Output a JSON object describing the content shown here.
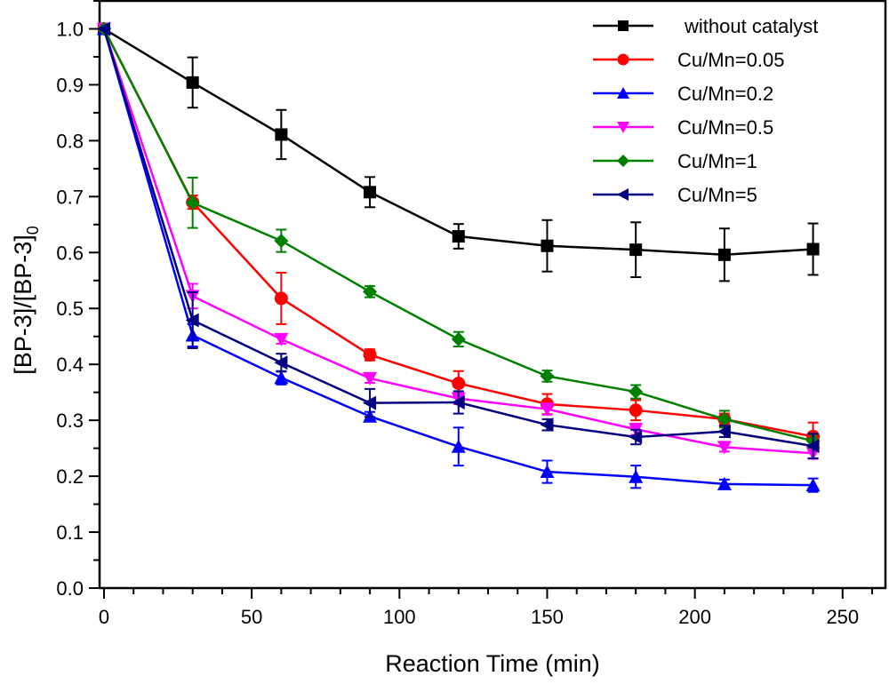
{
  "chart_data": {
    "type": "line",
    "title": "",
    "xlabel": "Reaction Time (min)",
    "ylabel_main": "[BP-3]/[BP-3]",
    "ylabel_subscript": "0",
    "xlim": [
      -1.5,
      264.5
    ],
    "ylim": [
      0,
      1.05
    ],
    "xticks": [
      0,
      50,
      100,
      150,
      200,
      250
    ],
    "xtick_labels": [
      "0",
      "50",
      "100",
      "150",
      "200",
      "250"
    ],
    "xminor_step": 10,
    "yticks": [
      0.0,
      0.1,
      0.2,
      0.3,
      0.4,
      0.5,
      0.6,
      0.7,
      0.8,
      0.9,
      1.0
    ],
    "ytick_labels": [
      "0.0",
      "0.1",
      "0.2",
      "0.3",
      "0.4",
      "0.5",
      "0.6",
      "0.7",
      "0.8",
      "0.9",
      "1.0"
    ],
    "yminor_step": 0.05,
    "grid": false,
    "legend_position": "top-right",
    "x": [
      0,
      30,
      60,
      90,
      120,
      150,
      180,
      210,
      240
    ],
    "series": [
      {
        "name": "without catalyst",
        "color": "#000000",
        "marker": "square",
        "values": [
          1.0,
          0.904,
          0.811,
          0.708,
          0.629,
          0.612,
          0.605,
          0.596,
          0.606
        ],
        "errors": [
          0,
          0.045,
          0.044,
          0.027,
          0.022,
          0.046,
          0.049,
          0.047,
          0.046
        ]
      },
      {
        "name": "Cu/Mn=0.05",
        "color": "#ff0000",
        "marker": "circle",
        "values": [
          1.0,
          0.69,
          0.518,
          0.417,
          0.366,
          0.329,
          0.318,
          0.302,
          0.271
        ],
        "errors": [
          0,
          0.012,
          0.046,
          0.01,
          0.022,
          0.018,
          0.018,
          0.01,
          0.025
        ]
      },
      {
        "name": "Cu/Mn=0.2",
        "color": "#0000ff",
        "marker": "triangle-up",
        "values": [
          1.0,
          0.452,
          0.376,
          0.307,
          0.253,
          0.208,
          0.199,
          0.186,
          0.184
        ],
        "errors": [
          0,
          0.02,
          0.012,
          0.008,
          0.034,
          0.02,
          0.02,
          0.008,
          0.012
        ]
      },
      {
        "name": "Cu/Mn=0.5",
        "color": "#ff00ff",
        "marker": "triangle-down",
        "values": [
          1.0,
          0.522,
          0.445,
          0.375,
          0.339,
          0.32,
          0.284,
          0.252,
          0.241
        ],
        "errors": [
          0,
          0.022,
          0.008,
          0.008,
          0.01,
          0.01,
          0.01,
          0.008,
          0.01
        ]
      },
      {
        "name": "Cu/Mn=1",
        "color": "#008000",
        "marker": "diamond",
        "values": [
          1.0,
          0.689,
          0.621,
          0.53,
          0.445,
          0.379,
          0.351,
          0.302,
          0.263
        ],
        "errors": [
          0,
          0.045,
          0.02,
          0.01,
          0.013,
          0.01,
          0.012,
          0.015,
          0.012
        ]
      },
      {
        "name": "Cu/Mn=5",
        "color": "#000080",
        "marker": "triangle-left",
        "values": [
          1.0,
          0.479,
          0.403,
          0.331,
          0.332,
          0.292,
          0.27,
          0.28,
          0.254
        ],
        "errors": [
          0,
          0.05,
          0.016,
          0.025,
          0.02,
          0.01,
          0.013,
          0.01,
          0.022
        ]
      }
    ]
  }
}
